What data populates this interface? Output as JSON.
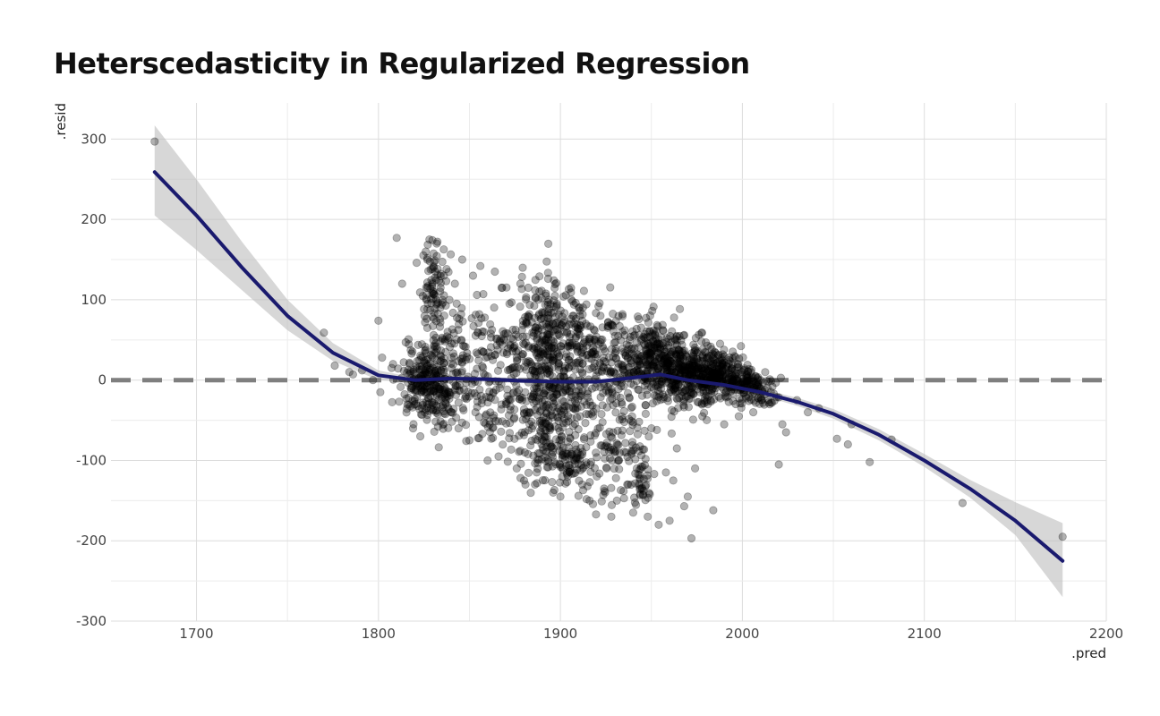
{
  "chart_data": {
    "type": "scatter",
    "title": "Heterscedasticity in Regularized Regression",
    "xlabel": ".pred",
    "ylabel": ".resid",
    "xlim": [
      1653,
      2200
    ],
    "ylim": [
      -300,
      345
    ],
    "x_ticks": [
      1700,
      1800,
      1900,
      2000,
      2100,
      2200
    ],
    "y_ticks": [
      -300,
      -200,
      -100,
      0,
      100,
      200,
      300
    ],
    "x_tick_labels": [
      "1700",
      "1800",
      "1900",
      "2000",
      "2100",
      "2200"
    ],
    "y_tick_labels": [
      "-300",
      "-200",
      "-100",
      "0",
      "100",
      "200",
      "300"
    ],
    "grid": true,
    "reference_line": {
      "y": 0,
      "style": "dashed",
      "color": "#7f7f7f"
    },
    "point_color": "#000000",
    "point_opacity": 0.3,
    "points": [
      [
        1677,
        297
      ],
      [
        1770,
        59
      ],
      [
        1776,
        18
      ],
      [
        1784,
        10
      ],
      [
        1786,
        7
      ],
      [
        1791,
        12
      ],
      [
        1797,
        0
      ],
      [
        1800,
        74
      ],
      [
        1801,
        -15
      ],
      [
        1802,
        28
      ],
      [
        1808,
        20
      ],
      [
        1810,
        177
      ],
      [
        1813,
        120
      ],
      [
        1815,
        47
      ],
      [
        1819,
        -60
      ],
      [
        1821,
        146
      ],
      [
        1823,
        -70
      ],
      [
        1826,
        160
      ],
      [
        1828,
        175
      ],
      [
        1830,
        110
      ],
      [
        1832,
        170
      ],
      [
        1834,
        90
      ],
      [
        1836,
        130
      ],
      [
        1838,
        60
      ],
      [
        1840,
        -40
      ],
      [
        1842,
        120
      ],
      [
        1844,
        -60
      ],
      [
        1846,
        150
      ],
      [
        1848,
        25
      ],
      [
        1850,
        -75
      ],
      [
        1852,
        130
      ],
      [
        1854,
        -20
      ],
      [
        1856,
        142
      ],
      [
        1858,
        60
      ],
      [
        1860,
        -100
      ],
      [
        1862,
        30
      ],
      [
        1864,
        135
      ],
      [
        1866,
        -95
      ],
      [
        1868,
        115
      ],
      [
        1870,
        -30
      ],
      [
        1872,
        95
      ],
      [
        1874,
        40
      ],
      [
        1876,
        -110
      ],
      [
        1878,
        120
      ],
      [
        1880,
        -125
      ],
      [
        1882,
        80
      ],
      [
        1884,
        20
      ],
      [
        1886,
        -130
      ],
      [
        1888,
        100
      ],
      [
        1890,
        -60
      ],
      [
        1892,
        105
      ],
      [
        1894,
        40
      ],
      [
        1896,
        -140
      ],
      [
        1898,
        95
      ],
      [
        1900,
        -145
      ],
      [
        1902,
        60
      ],
      [
        1904,
        -120
      ],
      [
        1906,
        100
      ],
      [
        1908,
        -100
      ],
      [
        1910,
        90
      ],
      [
        1912,
        -130
      ],
      [
        1914,
        70
      ],
      [
        1916,
        -150
      ],
      [
        1918,
        40
      ],
      [
        1920,
        -120
      ],
      [
        1922,
        80
      ],
      [
        1924,
        -135
      ],
      [
        1926,
        65
      ],
      [
        1928,
        -170
      ],
      [
        1930,
        55
      ],
      [
        1932,
        -100
      ],
      [
        1934,
        60
      ],
      [
        1936,
        -90
      ],
      [
        1938,
        50
      ],
      [
        1940,
        -165
      ],
      [
        1942,
        -110
      ],
      [
        1944,
        -135
      ],
      [
        1946,
        45
      ],
      [
        1948,
        -170
      ],
      [
        1950,
        -60
      ],
      [
        1952,
        40
      ],
      [
        1954,
        -180
      ],
      [
        1956,
        30
      ],
      [
        1958,
        -115
      ],
      [
        1960,
        -175
      ],
      [
        1962,
        -125
      ],
      [
        1964,
        -85
      ],
      [
        1966,
        30
      ],
      [
        1968,
        -157
      ],
      [
        1970,
        -145
      ],
      [
        1972,
        -197
      ],
      [
        1974,
        -110
      ],
      [
        1976,
        15
      ],
      [
        1978,
        -45
      ],
      [
        1980,
        20
      ],
      [
        1984,
        -162
      ],
      [
        1986,
        10
      ],
      [
        1990,
        -55
      ],
      [
        1994,
        15
      ],
      [
        1998,
        -45
      ],
      [
        2002,
        5
      ],
      [
        2006,
        -40
      ],
      [
        2010,
        -10
      ],
      [
        2015,
        -30
      ],
      [
        2020,
        -105
      ],
      [
        2022,
        -55
      ],
      [
        2024,
        -65
      ],
      [
        2030,
        -25
      ],
      [
        2036,
        -40
      ],
      [
        2042,
        -35
      ],
      [
        2052,
        -73
      ],
      [
        2058,
        -80
      ],
      [
        2060,
        -55
      ],
      [
        2070,
        -102
      ],
      [
        2082,
        -74
      ],
      [
        2121,
        -153
      ],
      [
        2176,
        -195
      ]
    ],
    "smooth": {
      "name": "",
      "color": "#1a1a6e",
      "x": [
        1677,
        1700,
        1725,
        1750,
        1775,
        1800,
        1820,
        1840,
        1860,
        1880,
        1900,
        1920,
        1940,
        1955,
        1970,
        1990,
        2010,
        2030,
        2050,
        2075,
        2100,
        2125,
        2150,
        2176
      ],
      "y": [
        259,
        205,
        140,
        80,
        34,
        6,
        0,
        2,
        1,
        -1,
        -2,
        -2,
        3,
        7,
        0,
        -6,
        -15,
        -27,
        -42,
        -68,
        -100,
        -135,
        -175,
        -225
      ],
      "ci_lower": [
        205,
        162,
        112,
        62,
        24,
        0,
        -3,
        -1,
        -2,
        -4,
        -5,
        -5,
        0,
        4,
        -3,
        -9,
        -19,
        -32,
        -48,
        -75,
        -108,
        -146,
        -193,
        -270
      ],
      "ci_upper": [
        317,
        250,
        172,
        100,
        46,
        12,
        3,
        5,
        4,
        2,
        1,
        1,
        6,
        10,
        3,
        -3,
        -11,
        -22,
        -36,
        -61,
        -92,
        -124,
        -152,
        -178
      ]
    }
  }
}
